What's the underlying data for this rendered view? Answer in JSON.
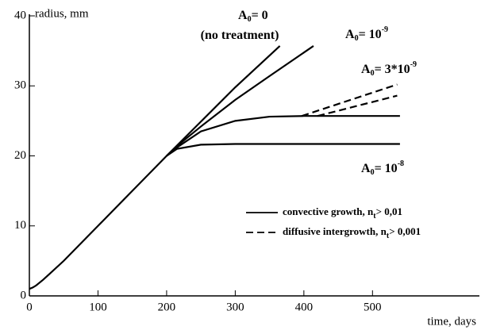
{
  "chart_data": {
    "type": "line",
    "xlabel": "time, days",
    "ylabel": "radius, mm",
    "xlim": [
      0,
      650
    ],
    "ylim": [
      0,
      40
    ],
    "xticks": [
      0,
      100,
      200,
      300,
      400,
      500
    ],
    "yticks": [
      0,
      10,
      20,
      30,
      40
    ],
    "color": "#000000",
    "series": [
      {
        "style": "solid",
        "x": [
          0,
          5,
          10,
          20,
          30,
          50,
          100,
          150,
          200,
          250,
          300,
          365
        ],
        "values": [
          1,
          1.2,
          1.5,
          2.3,
          3.2,
          5,
          10,
          15,
          20,
          24.9,
          29.8,
          35.7
        ]
      },
      {
        "style": "solid",
        "x": [
          200,
          215,
          250,
          300,
          350,
          414
        ],
        "values": [
          20,
          21.4,
          24.2,
          28,
          31.4,
          35.7
        ]
      },
      {
        "style": "solid",
        "x": [
          200,
          215,
          250,
          300,
          350,
          400,
          540
        ],
        "values": [
          20,
          21.2,
          23.5,
          25,
          25.6,
          25.7,
          25.7
        ]
      },
      {
        "style": "solid",
        "x": [
          200,
          215,
          250,
          300,
          540
        ],
        "values": [
          20,
          21,
          21.6,
          21.7,
          21.7
        ]
      },
      {
        "style": "dashed",
        "x": [
          397,
          536
        ],
        "values": [
          25.7,
          30.2
        ]
      },
      {
        "style": "dashed",
        "x": [
          420,
          536
        ],
        "values": [
          25.7,
          28.6
        ]
      }
    ],
    "annotations": [
      {
        "parts": [
          {
            "text": "A"
          },
          {
            "text": "0",
            "sub": true
          },
          {
            "text": "= 0"
          }
        ]
      },
      {
        "parts": [
          {
            "text": "(no treatment)"
          }
        ]
      },
      {
        "parts": [
          {
            "text": "A"
          },
          {
            "text": "0",
            "sub": true
          },
          {
            "text": "= 10"
          },
          {
            "text": "-9",
            "sup": true
          }
        ]
      },
      {
        "parts": [
          {
            "text": "A"
          },
          {
            "text": "0",
            "sub": true
          },
          {
            "text": "= 3*10"
          },
          {
            "text": "-9",
            "sup": true
          }
        ]
      },
      {
        "parts": [
          {
            "text": "A"
          },
          {
            "text": "0",
            "sub": true
          },
          {
            "text": "= 10"
          },
          {
            "text": "-8",
            "sup": true
          }
        ]
      }
    ],
    "legend": [
      {
        "style": "solid",
        "parts": [
          {
            "text": "convective growth, n"
          },
          {
            "text": "t",
            "sub": true
          },
          {
            "text": "> 0,01"
          }
        ]
      },
      {
        "style": "dashed",
        "parts": [
          {
            "text": "diffusive intergrowth, n"
          },
          {
            "text": "t",
            "sub": true
          },
          {
            "text": "> 0,001"
          }
        ]
      }
    ]
  }
}
